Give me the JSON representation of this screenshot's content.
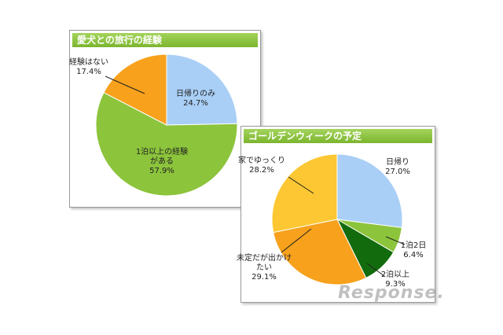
{
  "chart_data": [
    {
      "type": "pie",
      "title": "愛犬との旅行の経験",
      "categories": [
        "日帰りのみ",
        "1泊以上の経験がある",
        "経験はない"
      ],
      "values": [
        24.7,
        57.9,
        17.4
      ],
      "value_labels": [
        "24.7%",
        "57.9%",
        "17.4%"
      ],
      "colors": [
        "#a9cff6",
        "#8cc43c",
        "#f7a11c"
      ]
    },
    {
      "type": "pie",
      "title": "ゴールデンウィークの予定",
      "categories": [
        "日帰り",
        "1泊2日",
        "2泊以上",
        "未定だが出かけたい",
        "家でゆっくり"
      ],
      "values": [
        27.0,
        6.4,
        9.3,
        29.1,
        28.2
      ],
      "value_labels": [
        "27.0%",
        "6.4%",
        "9.3%",
        "29.1%",
        "28.2%"
      ],
      "colors": [
        "#a9cff6",
        "#8cc43c",
        "#126b0c",
        "#f7a11c",
        "#fcc733"
      ]
    }
  ],
  "watermark": "Response."
}
